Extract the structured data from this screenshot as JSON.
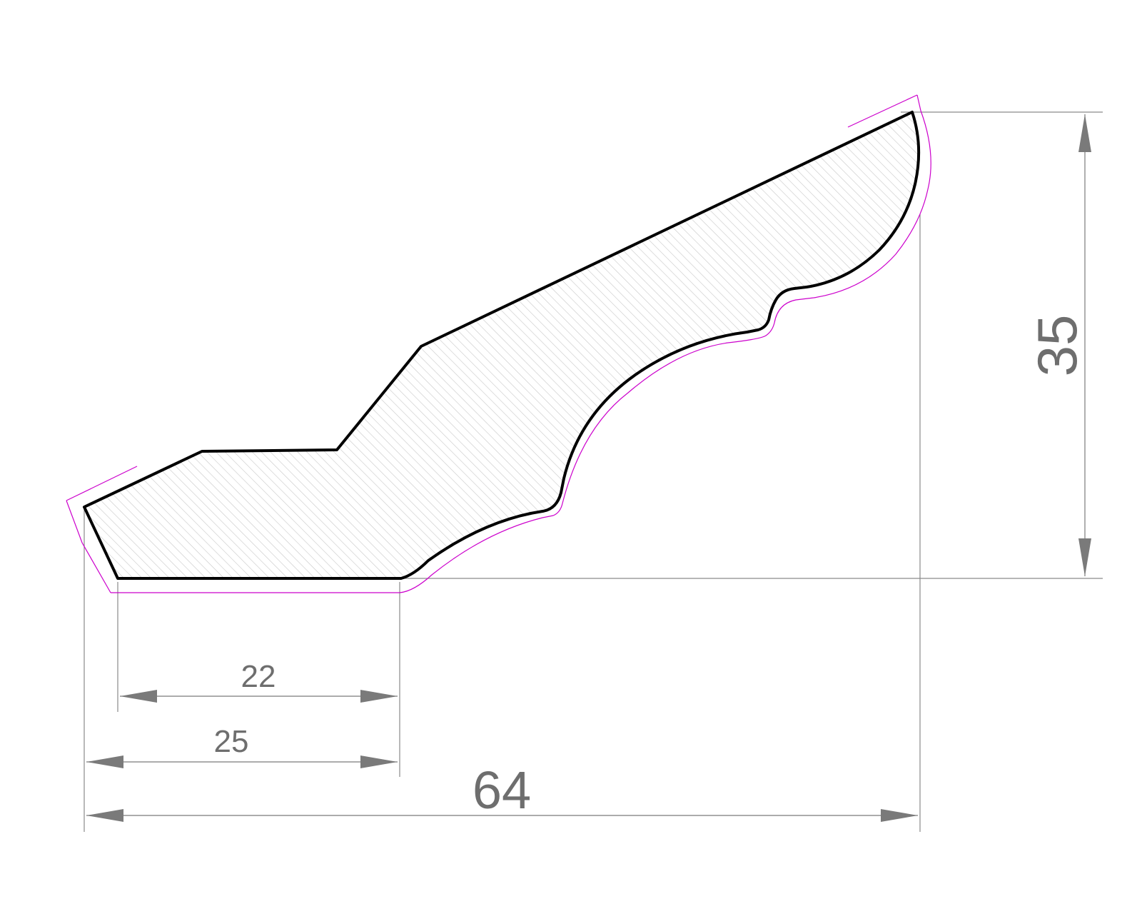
{
  "drawing": {
    "dimensions": {
      "height_label": "35",
      "inner_width_label": "22",
      "base_width_label": "25",
      "overall_width_label": "64"
    },
    "colors": {
      "profile_outline": "#000000",
      "hatch": "#c8c8c8",
      "offset_line": "#cc00cc",
      "dimension_line": "#7a7a7a",
      "dimension_text": "#6e6e6e"
    }
  }
}
